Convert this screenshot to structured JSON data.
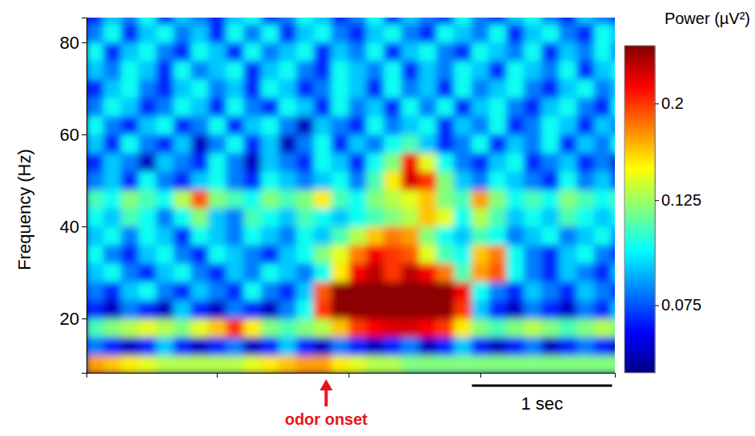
{
  "chart_data": {
    "type": "heatmap",
    "y_label": "Frequency (Hz)",
    "x": [
      -1.65,
      -1.525,
      -1.4,
      -1.275,
      -1.15,
      -1.025,
      -0.9,
      -0.775,
      -0.65,
      -0.525,
      -0.4,
      -0.275,
      -0.15,
      -0.025,
      0.1,
      0.225,
      0.35,
      0.475,
      0.6,
      0.725,
      0.85,
      0.975,
      1.1,
      1.225,
      1.35,
      1.475,
      1.6,
      1.725,
      1.85,
      1.975,
      2.1
    ],
    "y": [
      10,
      14,
      18,
      22,
      26,
      30,
      34,
      38,
      42,
      46,
      50,
      54,
      58,
      62,
      66,
      70,
      74,
      78,
      82,
      86
    ],
    "values": [
      [
        0.17,
        0.16,
        0.15,
        0.14,
        0.13,
        0.13,
        0.13,
        0.13,
        0.13,
        0.14,
        0.15,
        0.16,
        0.17,
        0.17,
        0.15,
        0.14,
        0.13,
        0.13,
        0.12,
        0.12,
        0.12,
        0.12,
        0.12,
        0.12,
        0.12,
        0.12,
        0.12,
        0.12,
        0.12,
        0.12,
        0.12
      ],
      [
        0.08,
        0.07,
        0.06,
        0.07,
        0.09,
        0.07,
        0.06,
        0.07,
        0.08,
        0.06,
        0.07,
        0.09,
        0.07,
        0.06,
        0.08,
        0.07,
        0.06,
        0.07,
        0.08,
        0.06,
        0.07,
        0.09,
        0.07,
        0.06,
        0.07,
        0.08,
        0.06,
        0.07,
        0.08,
        0.07,
        0.06
      ],
      [
        0.11,
        0.12,
        0.13,
        0.14,
        0.13,
        0.12,
        0.14,
        0.16,
        0.2,
        0.15,
        0.12,
        0.11,
        0.12,
        0.13,
        0.16,
        0.2,
        0.22,
        0.23,
        0.23,
        0.22,
        0.2,
        0.15,
        0.12,
        0.11,
        0.12,
        0.13,
        0.12,
        0.11,
        0.12,
        0.13,
        0.12
      ],
      [
        0.07,
        0.06,
        0.08,
        0.07,
        0.06,
        0.09,
        0.07,
        0.06,
        0.08,
        0.07,
        0.06,
        0.08,
        0.1,
        0.2,
        0.26,
        0.26,
        0.26,
        0.26,
        0.26,
        0.26,
        0.26,
        0.2,
        0.09,
        0.07,
        0.06,
        0.08,
        0.07,
        0.06,
        0.08,
        0.07,
        0.09
      ],
      [
        0.08,
        0.07,
        0.09,
        0.1,
        0.08,
        0.07,
        0.09,
        0.08,
        0.07,
        0.1,
        0.08,
        0.07,
        0.09,
        0.19,
        0.26,
        0.26,
        0.26,
        0.26,
        0.26,
        0.26,
        0.26,
        0.22,
        0.1,
        0.08,
        0.07,
        0.09,
        0.08,
        0.07,
        0.09,
        0.08,
        0.07
      ],
      [
        0.09,
        0.1,
        0.08,
        0.07,
        0.09,
        0.1,
        0.08,
        0.07,
        0.09,
        0.08,
        0.1,
        0.09,
        0.08,
        0.1,
        0.15,
        0.22,
        0.24,
        0.2,
        0.24,
        0.22,
        0.18,
        0.11,
        0.17,
        0.19,
        0.1,
        0.08,
        0.07,
        0.09,
        0.08,
        0.07,
        0.09
      ],
      [
        0.1,
        0.08,
        0.07,
        0.09,
        0.1,
        0.08,
        0.07,
        0.1,
        0.09,
        0.08,
        0.07,
        0.09,
        0.1,
        0.12,
        0.14,
        0.18,
        0.22,
        0.2,
        0.19,
        0.14,
        0.11,
        0.1,
        0.16,
        0.18,
        0.1,
        0.08,
        0.07,
        0.09,
        0.1,
        0.08,
        0.07
      ],
      [
        0.09,
        0.1,
        0.08,
        0.1,
        0.09,
        0.07,
        0.1,
        0.09,
        0.08,
        0.1,
        0.09,
        0.08,
        0.1,
        0.09,
        0.11,
        0.13,
        0.16,
        0.18,
        0.17,
        0.12,
        0.1,
        0.09,
        0.11,
        0.1,
        0.08,
        0.09,
        0.1,
        0.08,
        0.09,
        0.1,
        0.08
      ],
      [
        0.1,
        0.09,
        0.11,
        0.1,
        0.08,
        0.1,
        0.12,
        0.09,
        0.08,
        0.11,
        0.1,
        0.09,
        0.11,
        0.1,
        0.09,
        0.1,
        0.11,
        0.12,
        0.13,
        0.16,
        0.14,
        0.1,
        0.13,
        0.11,
        0.09,
        0.1,
        0.09,
        0.11,
        0.1,
        0.09,
        0.1
      ],
      [
        0.11,
        0.1,
        0.12,
        0.11,
        0.1,
        0.13,
        0.19,
        0.12,
        0.11,
        0.1,
        0.12,
        0.11,
        0.12,
        0.15,
        0.11,
        0.1,
        0.12,
        0.13,
        0.14,
        0.16,
        0.12,
        0.11,
        0.17,
        0.12,
        0.1,
        0.11,
        0.1,
        0.12,
        0.11,
        0.1,
        0.11
      ],
      [
        0.08,
        0.09,
        0.07,
        0.1,
        0.08,
        0.07,
        0.09,
        0.1,
        0.08,
        0.07,
        0.1,
        0.09,
        0.08,
        0.09,
        0.1,
        0.08,
        0.11,
        0.15,
        0.23,
        0.2,
        0.12,
        0.09,
        0.08,
        0.1,
        0.09,
        0.08,
        0.07,
        0.1,
        0.08,
        0.09,
        0.07
      ],
      [
        0.07,
        0.09,
        0.08,
        0.06,
        0.09,
        0.08,
        0.07,
        0.1,
        0.08,
        0.06,
        0.09,
        0.08,
        0.07,
        0.1,
        0.09,
        0.07,
        0.1,
        0.12,
        0.22,
        0.14,
        0.1,
        0.08,
        0.07,
        0.09,
        0.1,
        0.07,
        0.08,
        0.09,
        0.07,
        0.08,
        0.06
      ],
      [
        0.09,
        0.07,
        0.1,
        0.08,
        0.07,
        0.09,
        0.06,
        0.08,
        0.1,
        0.07,
        0.09,
        0.06,
        0.08,
        0.1,
        0.07,
        0.09,
        0.08,
        0.1,
        0.11,
        0.09,
        0.07,
        0.08,
        0.1,
        0.07,
        0.09,
        0.08,
        0.1,
        0.07,
        0.09,
        0.08,
        0.1
      ],
      [
        0.1,
        0.08,
        0.07,
        0.09,
        0.1,
        0.07,
        0.08,
        0.1,
        0.07,
        0.09,
        0.1,
        0.08,
        0.06,
        0.09,
        0.08,
        0.07,
        0.1,
        0.08,
        0.09,
        0.1,
        0.07,
        0.09,
        0.08,
        0.1,
        0.07,
        0.08,
        0.1,
        0.09,
        0.07,
        0.09,
        0.08
      ],
      [
        0.08,
        0.1,
        0.09,
        0.07,
        0.08,
        0.1,
        0.09,
        0.07,
        0.1,
        0.08,
        0.07,
        0.1,
        0.09,
        0.07,
        0.1,
        0.08,
        0.09,
        0.07,
        0.1,
        0.08,
        0.1,
        0.07,
        0.09,
        0.1,
        0.08,
        0.07,
        0.09,
        0.1,
        0.08,
        0.07,
        0.1
      ],
      [
        0.07,
        0.09,
        0.1,
        0.08,
        0.07,
        0.09,
        0.1,
        0.08,
        0.09,
        0.07,
        0.1,
        0.09,
        0.07,
        0.08,
        0.1,
        0.09,
        0.07,
        0.1,
        0.08,
        0.09,
        0.07,
        0.1,
        0.08,
        0.09,
        0.1,
        0.08,
        0.07,
        0.09,
        0.1,
        0.08,
        0.09
      ],
      [
        0.09,
        0.08,
        0.1,
        0.09,
        0.07,
        0.1,
        0.08,
        0.09,
        0.1,
        0.07,
        0.09,
        0.1,
        0.08,
        0.07,
        0.1,
        0.09,
        0.08,
        0.1,
        0.07,
        0.09,
        0.08,
        0.1,
        0.09,
        0.07,
        0.1,
        0.09,
        0.08,
        0.1,
        0.07,
        0.09,
        0.1
      ],
      [
        0.1,
        0.07,
        0.09,
        0.1,
        0.08,
        0.07,
        0.1,
        0.09,
        0.07,
        0.1,
        0.08,
        0.09,
        0.1,
        0.07,
        0.09,
        0.08,
        0.1,
        0.07,
        0.09,
        0.1,
        0.08,
        0.07,
        0.1,
        0.09,
        0.08,
        0.1,
        0.07,
        0.09,
        0.08,
        0.1,
        0.08
      ],
      [
        0.08,
        0.1,
        0.07,
        0.09,
        0.1,
        0.08,
        0.09,
        0.07,
        0.1,
        0.08,
        0.1,
        0.07,
        0.09,
        0.1,
        0.08,
        0.07,
        0.09,
        0.1,
        0.08,
        0.07,
        0.1,
        0.09,
        0.08,
        0.1,
        0.07,
        0.09,
        0.1,
        0.08,
        0.07,
        0.1,
        0.09
      ],
      [
        0.07,
        0.09,
        0.08,
        0.1,
        0.07,
        0.09,
        0.08,
        0.07,
        0.09,
        0.1,
        0.07,
        0.08,
        0.1,
        0.09,
        0.07,
        0.08,
        0.1,
        0.07,
        0.09,
        0.08,
        0.07,
        0.1,
        0.08,
        0.07,
        0.09,
        0.1,
        0.08,
        0.07,
        0.09,
        0.08,
        0.07
      ]
    ],
    "xlim": [
      -1.71,
      2.06
    ],
    "ylim": [
      8.2,
      85.4
    ],
    "xticks": [
      -0.78,
      0.16,
      1.1
    ],
    "yticks": [
      20,
      40,
      60,
      80
    ],
    "tick_labels": "y",
    "colorbar": {
      "label": "Power (µV²)",
      "range": [
        0.054,
        0.265
      ],
      "ticks": [
        0.075,
        0.125,
        0.2
      ],
      "log": true
    },
    "annotations": [
      {
        "text": "odor onset",
        "x": 0,
        "color": "#e8141c"
      }
    ],
    "scale_bar": {
      "label": "1 sec",
      "x": [
        1.04,
        2.04
      ]
    }
  }
}
